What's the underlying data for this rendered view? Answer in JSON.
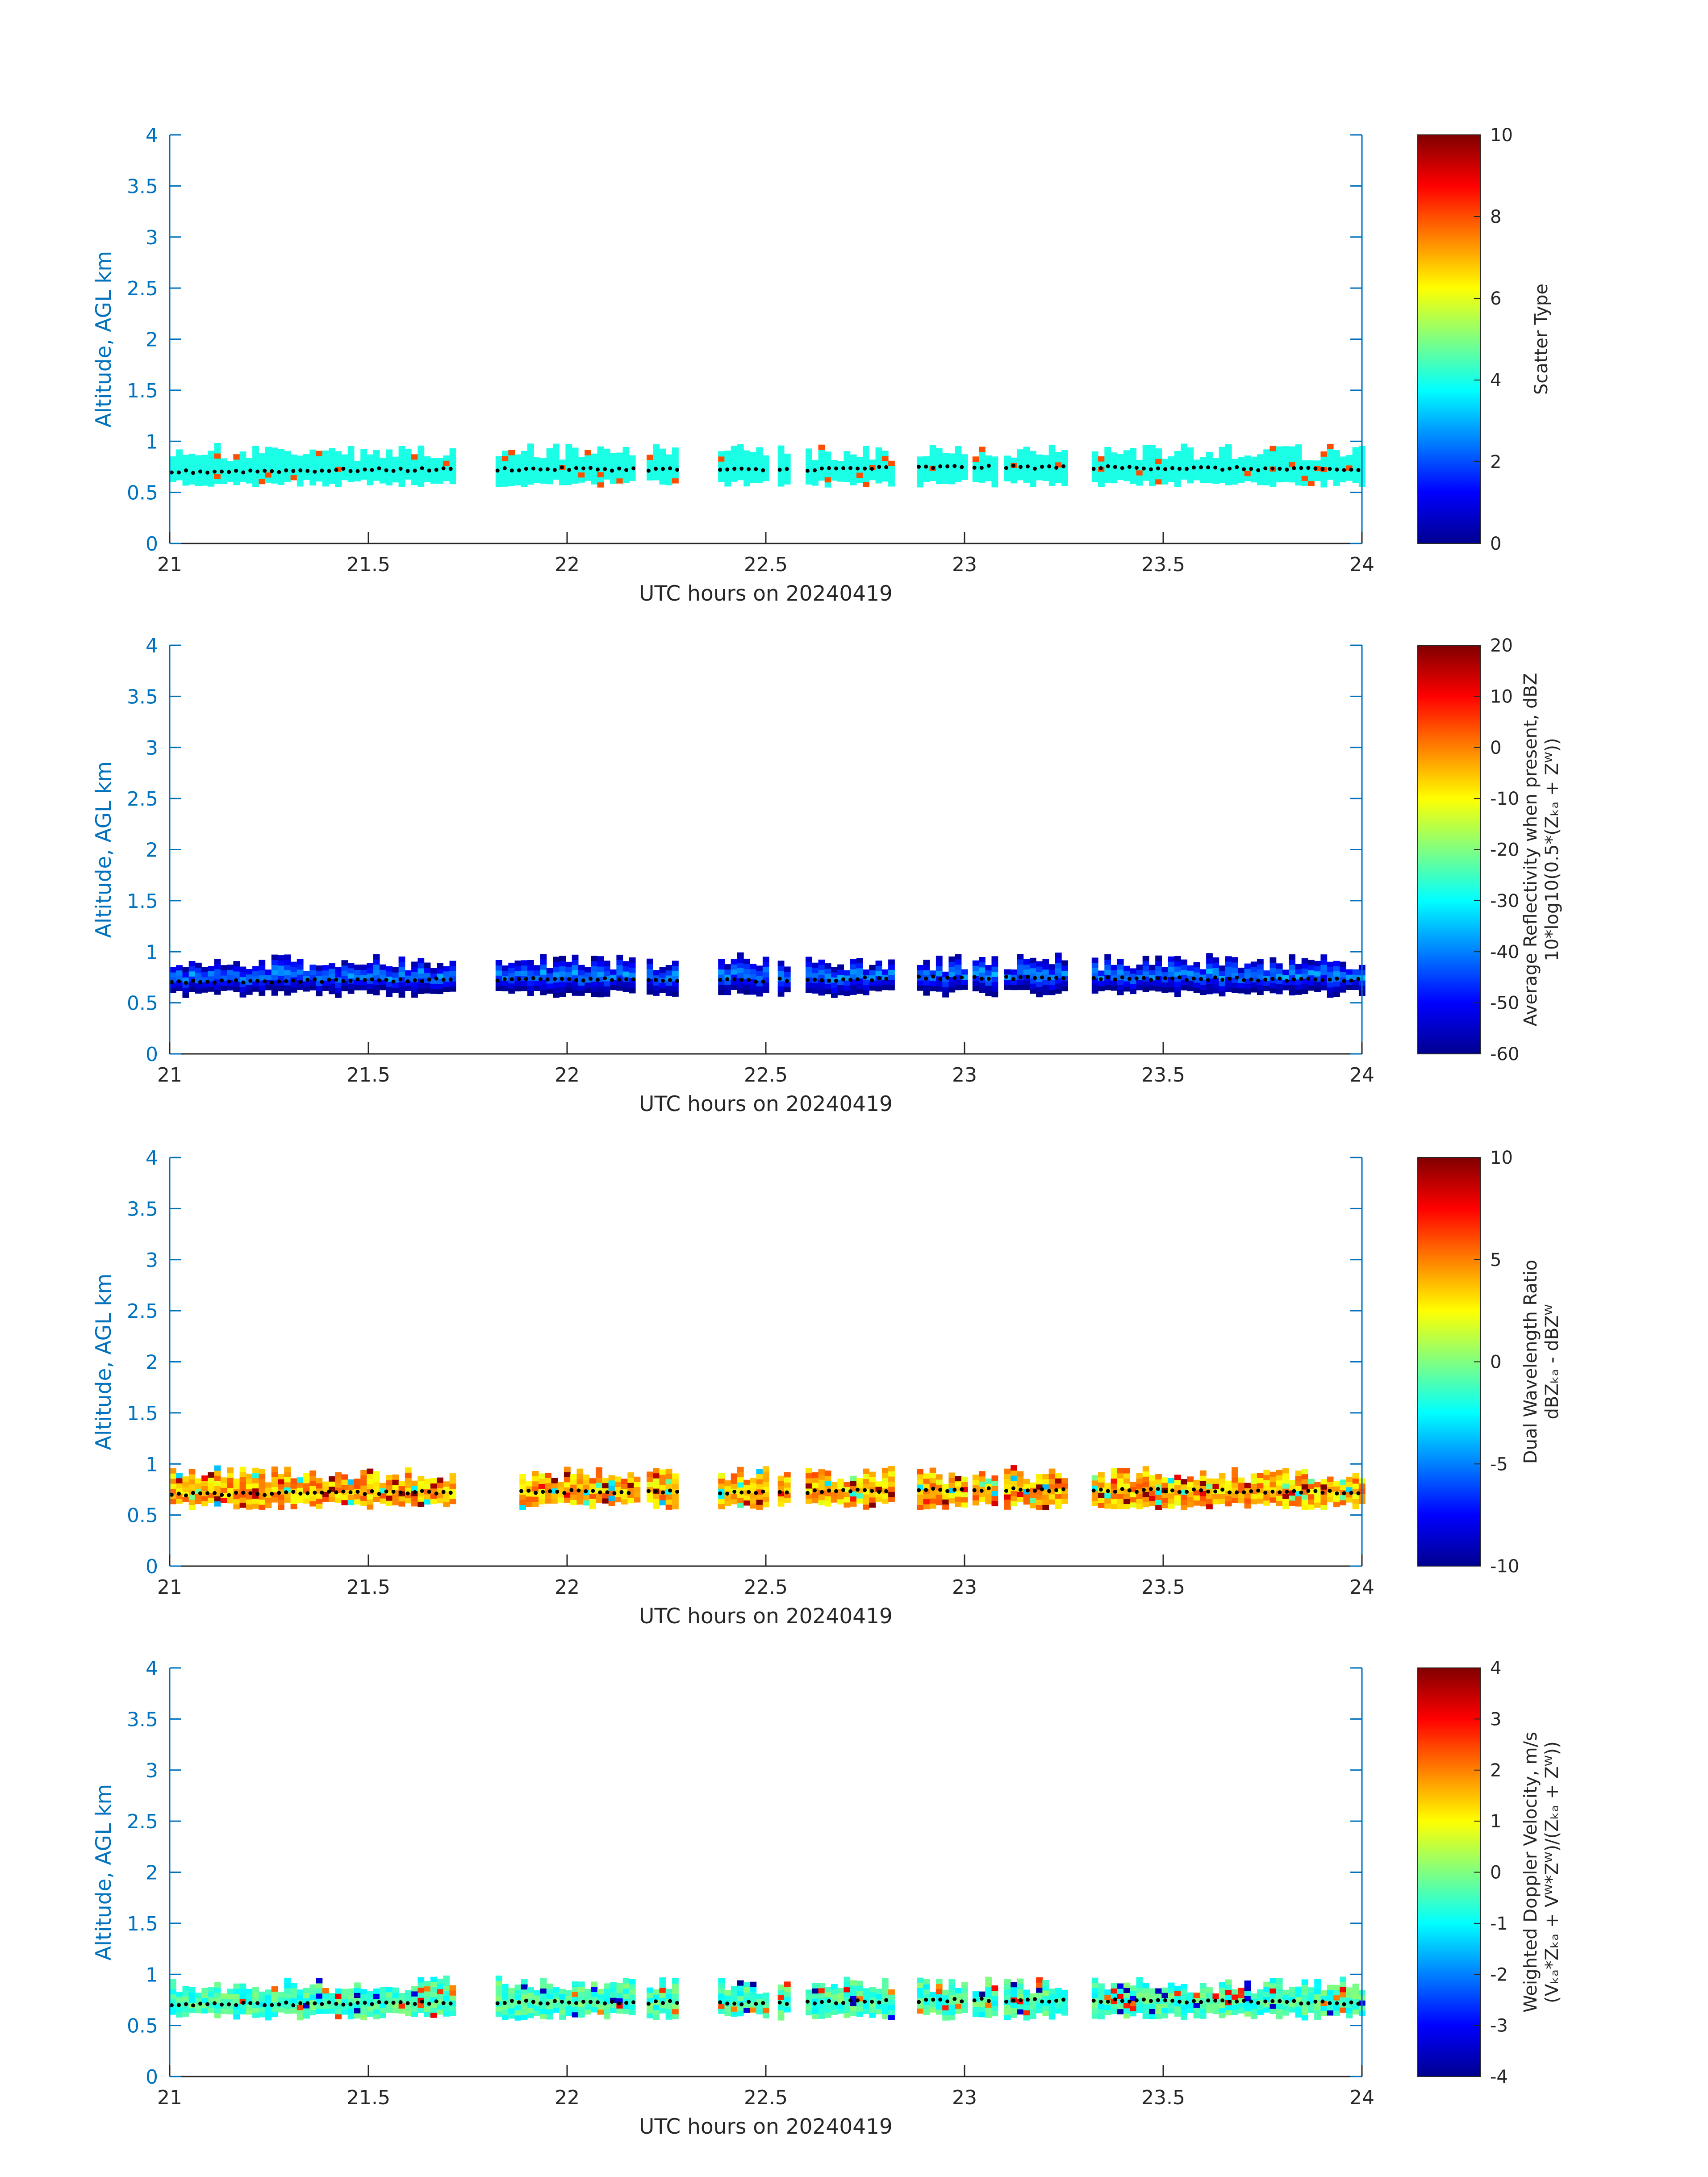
{
  "figure": {
    "xlabel": "UTC hours on 20240419",
    "ylabel": "Altitude, AGL km",
    "x_ticks": [
      "21",
      "21.5",
      "22",
      "22.5",
      "23",
      "23.5",
      "24"
    ],
    "y_ticks": [
      "0",
      "0.5",
      "1",
      "1.5",
      "2",
      "2.5",
      "3",
      "3.5",
      "4"
    ],
    "axis_color": "#0072bd",
    "colormap": [
      "#00008f",
      "#0000ff",
      "#0080ff",
      "#00ffff",
      "#80ff80",
      "#ffff00",
      "#ff8000",
      "#ff0000",
      "#800000"
    ]
  },
  "chart_data": [
    {
      "type": "heatmap",
      "xlabel": "UTC hours on 20240419",
      "ylabel": "Altitude, AGL km",
      "xlim": [
        21,
        24
      ],
      "ylim": [
        0,
        4
      ],
      "grid": false,
      "colorbar": {
        "label_lines": [
          "Scatter Type"
        ],
        "range": [
          0,
          10
        ],
        "ticks": [
          "0",
          "2",
          "4",
          "6",
          "8",
          "10"
        ]
      },
      "data_segments": [
        [
          21.0,
          21.72
        ],
        [
          21.82,
          22.17
        ],
        [
          22.2,
          22.28
        ],
        [
          22.38,
          22.5
        ],
        [
          22.53,
          22.56
        ],
        [
          22.6,
          22.82
        ],
        [
          22.88,
          23.0
        ],
        [
          23.02,
          23.07
        ],
        [
          23.1,
          23.25
        ],
        [
          23.32,
          24.0
        ]
      ],
      "field_summary": {
        "dominant_value": 4,
        "min": 3,
        "max": 8,
        "note_values": [
          8
        ]
      },
      "cloud_base_markers": [
        [
          21.0,
          0.7
        ],
        [
          21.5,
          0.72
        ],
        [
          22.0,
          0.73
        ],
        [
          22.5,
          0.72
        ],
        [
          23.0,
          0.75
        ],
        [
          23.5,
          0.74
        ],
        [
          24.0,
          0.72
        ]
      ]
    },
    {
      "type": "heatmap",
      "xlabel": "UTC hours on 20240419",
      "ylabel": "Altitude, AGL km",
      "xlim": [
        21,
        24
      ],
      "ylim": [
        0,
        4
      ],
      "grid": false,
      "colorbar": {
        "label_lines": [
          "Average Reflectivity when present, dBZ",
          "10*log10(0.5*(Zₖₐ + Zᵂ))"
        ],
        "range": [
          -60,
          20
        ],
        "ticks": [
          "-60",
          "-50",
          "-40",
          "-30",
          "-20",
          "-10",
          "0",
          "10",
          "20"
        ]
      },
      "data_segments": [
        [
          21.0,
          21.72
        ],
        [
          21.82,
          22.17
        ],
        [
          22.2,
          22.28
        ],
        [
          22.38,
          22.5
        ],
        [
          22.53,
          22.56
        ],
        [
          22.6,
          22.82
        ],
        [
          22.88,
          23.0
        ],
        [
          23.02,
          23.07
        ],
        [
          23.1,
          23.25
        ],
        [
          23.32,
          24.0
        ]
      ],
      "field_summary": {
        "min": -60,
        "max": -35,
        "center_value": -38
      },
      "cloud_base_markers": [
        [
          21.0,
          0.7
        ],
        [
          21.5,
          0.72
        ],
        [
          22.0,
          0.73
        ],
        [
          22.5,
          0.72
        ],
        [
          23.0,
          0.75
        ],
        [
          23.5,
          0.74
        ],
        [
          24.0,
          0.72
        ]
      ]
    },
    {
      "type": "heatmap",
      "xlabel": "UTC hours on 20240419",
      "ylabel": "Altitude, AGL km",
      "xlim": [
        21,
        24
      ],
      "ylim": [
        0,
        4
      ],
      "grid": false,
      "colorbar": {
        "label_lines": [
          "Dual Wavelength Ratio",
          "dBZₖₐ - dBZᵂ"
        ],
        "range": [
          -10,
          10
        ],
        "ticks": [
          "-10",
          "-5",
          "0",
          "5",
          "10"
        ]
      },
      "data_segments": [
        [
          21.0,
          21.72
        ],
        [
          21.88,
          22.17
        ],
        [
          22.2,
          22.28
        ],
        [
          22.38,
          22.5
        ],
        [
          22.53,
          22.56
        ],
        [
          22.6,
          22.82
        ],
        [
          22.88,
          23.0
        ],
        [
          23.02,
          23.07
        ],
        [
          23.1,
          23.25
        ],
        [
          23.32,
          24.0
        ]
      ],
      "field_summary": {
        "min": -4,
        "max": 10,
        "dominant_value": 4
      },
      "cloud_base_markers": [
        [
          21.0,
          0.7
        ],
        [
          21.5,
          0.72
        ],
        [
          22.0,
          0.73
        ],
        [
          22.5,
          0.72
        ],
        [
          23.0,
          0.75
        ],
        [
          23.5,
          0.74
        ],
        [
          24.0,
          0.72
        ]
      ]
    },
    {
      "type": "heatmap",
      "xlabel": "UTC hours on 20240419",
      "ylabel": "Altitude, AGL km",
      "xlim": [
        21,
        24
      ],
      "ylim": [
        0,
        4
      ],
      "grid": false,
      "colorbar": {
        "label_lines": [
          "Weighted Doppler Velocity, m/s",
          "(Vₖₐ*Zₖₐ + Vᵂ*Zᵂ)/(Zₖₐ + Zᵂ))"
        ],
        "range": [
          -4,
          4
        ],
        "ticks": [
          "-4",
          "-3",
          "-2",
          "-1",
          "0",
          "1",
          "2",
          "3",
          "4"
        ]
      },
      "data_segments": [
        [
          21.0,
          21.72
        ],
        [
          21.82,
          22.17
        ],
        [
          22.2,
          22.28
        ],
        [
          22.38,
          22.5
        ],
        [
          22.53,
          22.56
        ],
        [
          22.6,
          22.82
        ],
        [
          22.88,
          23.0
        ],
        [
          23.02,
          23.07
        ],
        [
          23.1,
          23.25
        ],
        [
          23.32,
          24.0
        ]
      ],
      "field_summary": {
        "min": -4,
        "max": 4,
        "dominant_value": -0.5
      },
      "cloud_base_markers": [
        [
          21.0,
          0.7
        ],
        [
          21.5,
          0.72
        ],
        [
          22.0,
          0.73
        ],
        [
          22.5,
          0.72
        ],
        [
          23.0,
          0.75
        ],
        [
          23.5,
          0.74
        ],
        [
          24.0,
          0.72
        ]
      ]
    }
  ]
}
